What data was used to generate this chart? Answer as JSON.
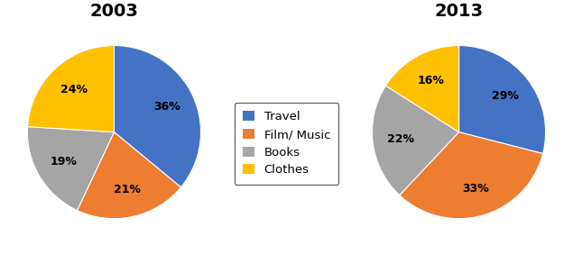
{
  "title_2003": "2003",
  "title_2013": "2013",
  "labels": [
    "Travel",
    "Film/ Music",
    "Books",
    "Clothes"
  ],
  "values_2003": [
    36,
    21,
    19,
    24
  ],
  "values_2013": [
    29,
    33,
    22,
    16
  ],
  "colors": [
    "#4472C4",
    "#ED7D31",
    "#A5A5A5",
    "#FFC000"
  ],
  "background_color": "#FFFFFF",
  "title_fontsize": 14,
  "label_fontsize": 9,
  "legend_fontsize": 9.5,
  "startangle_2003": 90,
  "startangle_2013": 90
}
